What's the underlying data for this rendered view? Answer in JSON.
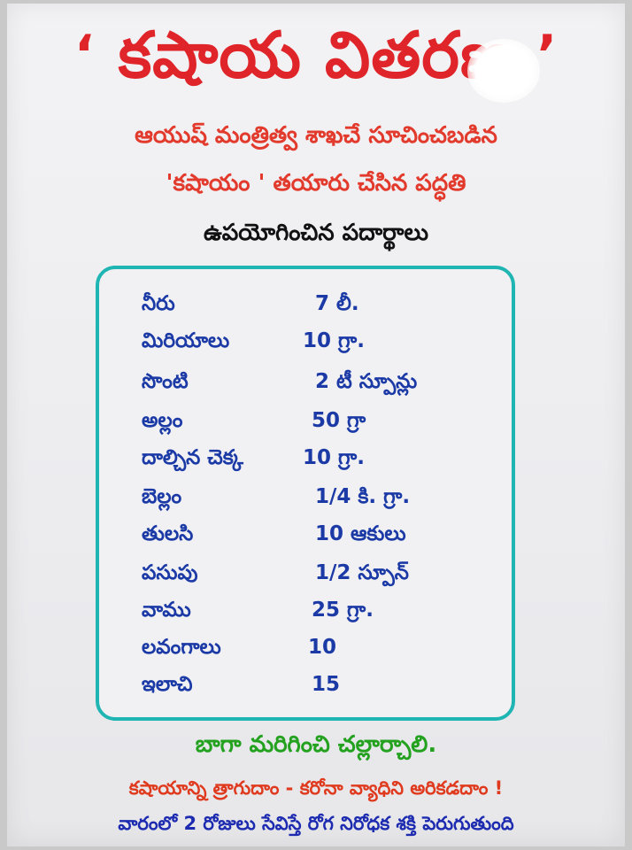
{
  "title": {
    "quote_open": "‘",
    "text": "కషాయ వితరణ",
    "quote_close": "’"
  },
  "subtitle": {
    "line1": "ఆయుష్ మంత్రిత్వ శాఖచే సూచించబడిన",
    "line2": "'కషాయం ' తయారు చేసిన పద్ధతి"
  },
  "ingredients_heading": "ఉపయోగించిన పదార్థాలు",
  "ingredients": [
    {
      "name": "నీరు",
      "qty": "7 లీ."
    },
    {
      "name": "మిరియాలు",
      "qty": "10 గ్రా."
    },
    {
      "name": "సొంటి",
      "qty": "2 టీ స్పూన్లు"
    },
    {
      "name": "అల్లం",
      "qty": "50 గ్రా"
    },
    {
      "name": "దాల్చిన చెక్క",
      "qty": "10 గ్రా."
    },
    {
      "name": "బెల్లం",
      "qty": "1/4 కి. గ్రా."
    },
    {
      "name": "తులసి",
      "qty": "10 ఆకులు"
    },
    {
      "name": "పసుపు",
      "qty": "1/2 స్పూన్"
    },
    {
      "name": "వాము",
      "qty": "25 గ్రా."
    },
    {
      "name": "లవంగాలు",
      "qty": "10"
    },
    {
      "name": "ఇలాచి",
      "qty": "15"
    }
  ],
  "instruction": "బాగా మరిగించి చల్లార్చాలి.",
  "slogan": "కషాయాన్ని త్రాగుదాం - కరోనా వ్యాధిని అరికడదాం !",
  "note": "వారంలో 2 రోజులు సేవిస్తే రోగ నిరోధక శక్తి పెరుగుతుంది",
  "colors": {
    "title_red": "#e0252a",
    "ingredient_blue": "#1b3aa6",
    "box_border_teal": "#1fb5b2",
    "instruction_green": "#23a11f"
  }
}
